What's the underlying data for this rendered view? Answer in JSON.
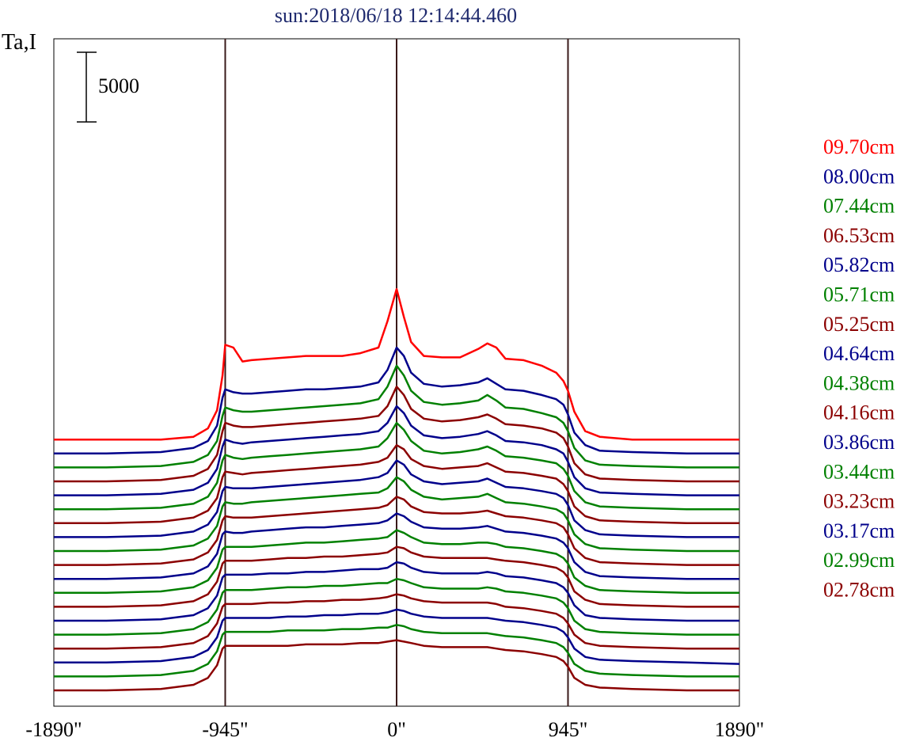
{
  "chart_data": {
    "type": "line",
    "title": "sun:2018/06/18 12:14:44.460",
    "ylabel": "Ta,I",
    "xlim": [
      -1890,
      1890
    ],
    "x_ticks": [
      -1890,
      -945,
      0,
      945,
      1890
    ],
    "x_tick_labels": [
      "-1890\"",
      "-945\"",
      "0\"",
      "945\"",
      "1890\""
    ],
    "vertical_lines": [
      -945,
      0,
      945
    ],
    "scale_bar": {
      "value": 5000,
      "label": "5000"
    },
    "grid": false,
    "legend_position": "right",
    "x": [
      -1890,
      -1600,
      -1300,
      -1120,
      -1040,
      -990,
      -960,
      -945,
      -900,
      -850,
      -800,
      -700,
      -600,
      -500,
      -400,
      -300,
      -200,
      -100,
      -50,
      0,
      40,
      80,
      150,
      250,
      350,
      450,
      500,
      550,
      600,
      700,
      800,
      880,
      920,
      945,
      980,
      1040,
      1120,
      1300,
      1600,
      1890
    ],
    "series": [
      {
        "name": "09.70cm",
        "color": "#ff0000",
        "values": [
          0,
          0,
          0,
          200,
          800,
          2100,
          4600,
          6800,
          6600,
          5600,
          5700,
          5800,
          5900,
          6000,
          6000,
          6000,
          6200,
          6600,
          8500,
          10800,
          8800,
          7000,
          6000,
          5900,
          5900,
          6500,
          6900,
          6600,
          5800,
          5700,
          5300,
          4800,
          4200,
          3500,
          2000,
          600,
          200,
          0,
          0,
          0
        ]
      },
      {
        "name": "08.00cm",
        "color": "#00008b",
        "values": [
          0,
          0,
          100,
          400,
          900,
          2000,
          4000,
          4600,
          4400,
          4300,
          4300,
          4400,
          4500,
          4600,
          4600,
          4700,
          4800,
          5100,
          6000,
          7600,
          7000,
          5800,
          5000,
          4800,
          4900,
          5100,
          5400,
          5000,
          4600,
          4500,
          4200,
          3900,
          3500,
          2800,
          1500,
          600,
          200,
          100,
          0,
          0
        ]
      },
      {
        "name": "07.44cm",
        "color": "#008000",
        "values": [
          0,
          0,
          100,
          400,
          900,
          1900,
          3700,
          4300,
          4100,
          4000,
          4000,
          4100,
          4200,
          4300,
          4400,
          4500,
          4600,
          4900,
          5800,
          7300,
          6600,
          5500,
          4700,
          4500,
          4600,
          4800,
          5200,
          4800,
          4300,
          4200,
          3900,
          3600,
          3200,
          2600,
          1400,
          500,
          200,
          100,
          0,
          0
        ]
      },
      {
        "name": "06.53cm",
        "color": "#8b0000",
        "values": [
          0,
          0,
          100,
          400,
          900,
          1900,
          3600,
          4200,
          4000,
          3900,
          3900,
          4000,
          4100,
          4200,
          4300,
          4400,
          4500,
          4700,
          5400,
          6800,
          6200,
          5200,
          4500,
          4300,
          4400,
          4600,
          4800,
          4500,
          4100,
          4000,
          3800,
          3500,
          3100,
          2500,
          1300,
          500,
          200,
          100,
          0,
          0
        ]
      },
      {
        "name": "05.82cm",
        "color": "#00008b",
        "values": [
          0,
          0,
          100,
          400,
          900,
          1900,
          3500,
          4000,
          3800,
          3700,
          3800,
          3900,
          4000,
          4100,
          4200,
          4300,
          4400,
          4600,
          5200,
          6400,
          5900,
          5000,
          4300,
          4100,
          4200,
          4400,
          4600,
          4300,
          3900,
          3800,
          3600,
          3300,
          3000,
          2400,
          1300,
          500,
          200,
          100,
          0,
          0
        ]
      },
      {
        "name": "05.71cm",
        "color": "#008000",
        "values": [
          0,
          0,
          100,
          400,
          900,
          1900,
          3500,
          3900,
          3700,
          3600,
          3700,
          3800,
          3900,
          4000,
          4100,
          4200,
          4300,
          4500,
          5100,
          6200,
          5700,
          4900,
          4200,
          4000,
          4100,
          4300,
          4500,
          4200,
          3800,
          3700,
          3500,
          3300,
          2900,
          2400,
          1300,
          500,
          200,
          100,
          0,
          0
        ]
      },
      {
        "name": "05.25cm",
        "color": "#8b0000",
        "values": [
          0,
          0,
          100,
          400,
          900,
          1800,
          3300,
          3700,
          3600,
          3500,
          3600,
          3700,
          3800,
          3900,
          4000,
          4100,
          4200,
          4400,
          4700,
          5600,
          5300,
          4600,
          4100,
          3900,
          4000,
          4100,
          4300,
          4000,
          3700,
          3600,
          3400,
          3200,
          2800,
          2300,
          1200,
          500,
          200,
          100,
          0,
          0
        ]
      },
      {
        "name": "04.64cm",
        "color": "#00008b",
        "values": [
          0,
          0,
          100,
          400,
          900,
          1800,
          3300,
          3600,
          3500,
          3500,
          3500,
          3600,
          3700,
          3800,
          3900,
          4000,
          4100,
          4300,
          4600,
          5500,
          5200,
          4500,
          4000,
          3800,
          3900,
          4000,
          4200,
          3900,
          3600,
          3500,
          3300,
          3100,
          2800,
          2300,
          1200,
          500,
          200,
          100,
          0,
          0
        ]
      },
      {
        "name": "04.38cm",
        "color": "#008000",
        "values": [
          0,
          0,
          100,
          400,
          900,
          1800,
          3200,
          3500,
          3400,
          3400,
          3500,
          3600,
          3700,
          3800,
          3900,
          4000,
          4100,
          4200,
          4500,
          5300,
          5000,
          4400,
          3900,
          3700,
          3800,
          3900,
          4100,
          3800,
          3500,
          3400,
          3200,
          3000,
          2700,
          2200,
          1200,
          500,
          200,
          100,
          0,
          0
        ]
      },
      {
        "name": "04.16cm",
        "color": "#8b0000",
        "values": [
          0,
          0,
          100,
          400,
          900,
          1800,
          3200,
          3500,
          3400,
          3400,
          3400,
          3500,
          3600,
          3700,
          3800,
          3900,
          4000,
          4100,
          4300,
          4900,
          4700,
          4200,
          3800,
          3700,
          3700,
          3800,
          3900,
          3700,
          3500,
          3400,
          3200,
          3000,
          2700,
          2200,
          1200,
          500,
          200,
          100,
          0,
          0
        ]
      },
      {
        "name": "03.86cm",
        "color": "#00008b",
        "values": [
          0,
          0,
          100,
          400,
          900,
          1800,
          3200,
          3400,
          3300,
          3300,
          3400,
          3500,
          3600,
          3700,
          3700,
          3800,
          3900,
          4000,
          4200,
          4700,
          4500,
          4100,
          3700,
          3600,
          3600,
          3700,
          3800,
          3600,
          3400,
          3300,
          3100,
          2900,
          2600,
          2200,
          1200,
          500,
          200,
          100,
          0,
          0
        ]
      },
      {
        "name": "03.44cm",
        "color": "#008000",
        "values": [
          0,
          0,
          100,
          400,
          900,
          1800,
          3100,
          3300,
          3300,
          3300,
          3300,
          3400,
          3500,
          3600,
          3600,
          3700,
          3800,
          3900,
          4000,
          4500,
          4300,
          4000,
          3600,
          3500,
          3500,
          3600,
          3600,
          3500,
          3300,
          3200,
          3000,
          2800,
          2500,
          2100,
          1100,
          500,
          200,
          100,
          0,
          0
        ]
      },
      {
        "name": "03.23cm",
        "color": "#8b0000",
        "values": [
          0,
          0,
          100,
          400,
          900,
          1800,
          3100,
          3300,
          3300,
          3300,
          3300,
          3400,
          3500,
          3500,
          3600,
          3600,
          3700,
          3800,
          3900,
          4300,
          4200,
          3900,
          3600,
          3500,
          3500,
          3500,
          3500,
          3400,
          3300,
          3200,
          3000,
          2800,
          2500,
          2100,
          1100,
          500,
          200,
          100,
          0,
          0
        ]
      },
      {
        "name": "03.17cm",
        "color": "#00008b",
        "values": [
          0,
          0,
          100,
          400,
          900,
          1800,
          3100,
          3300,
          3300,
          3300,
          3300,
          3400,
          3400,
          3500,
          3500,
          3600,
          3700,
          3700,
          3800,
          4200,
          4100,
          3800,
          3500,
          3400,
          3400,
          3400,
          3500,
          3400,
          3200,
          3100,
          2900,
          2700,
          2400,
          2000,
          1100,
          400,
          200,
          100,
          0,
          0
        ]
      },
      {
        "name": "02.99cm",
        "color": "#008000",
        "values": [
          0,
          0,
          100,
          400,
          900,
          1800,
          3000,
          3200,
          3200,
          3200,
          3200,
          3300,
          3400,
          3400,
          3500,
          3500,
          3600,
          3700,
          3700,
          4000,
          3900,
          3700,
          3400,
          3300,
          3300,
          3300,
          3400,
          3300,
          3100,
          3000,
          2800,
          2600,
          2300,
          1900,
          1000,
          400,
          200,
          100,
          0,
          0
        ]
      },
      {
        "name": "02.78cm",
        "color": "#8b0000",
        "values": [
          0,
          0,
          100,
          400,
          900,
          1800,
          3000,
          3200,
          3200,
          3200,
          3200,
          3300,
          3300,
          3400,
          3400,
          3500,
          3500,
          3600,
          3700,
          3900,
          3800,
          3600,
          3400,
          3300,
          3300,
          3300,
          3300,
          3200,
          3000,
          2900,
          2700,
          2500,
          2200,
          1800,
          1000,
          400,
          200,
          100,
          0,
          0
        ]
      },
      {
        "color": "#00008b",
        "values": [
          0,
          0,
          100,
          400,
          900,
          1800,
          3000,
          3200,
          3200,
          3200,
          3200,
          3200,
          3300,
          3300,
          3400,
          3400,
          3500,
          3500,
          3600,
          3800,
          3700,
          3500,
          3300,
          3200,
          3200,
          3200,
          3200,
          3100,
          3000,
          2900,
          2700,
          2500,
          2200,
          1800,
          1000,
          400,
          200,
          100,
          0,
          -100
        ]
      },
      {
        "color": "#008000",
        "values": [
          0,
          0,
          100,
          400,
          900,
          1800,
          3000,
          3200,
          3200,
          3200,
          3200,
          3200,
          3300,
          3300,
          3300,
          3400,
          3400,
          3500,
          3500,
          3700,
          3600,
          3400,
          3200,
          3100,
          3100,
          3100,
          3100,
          3000,
          2900,
          2800,
          2600,
          2400,
          2100,
          1700,
          900,
          400,
          200,
          100,
          0,
          0
        ]
      },
      {
        "color": "#8b0000",
        "values": [
          0,
          0,
          100,
          400,
          900,
          1800,
          3000,
          3200,
          3200,
          3200,
          3200,
          3200,
          3200,
          3300,
          3300,
          3300,
          3400,
          3400,
          3500,
          3600,
          3500,
          3400,
          3200,
          3100,
          3100,
          3100,
          3100,
          3000,
          2900,
          2800,
          2600,
          2400,
          2100,
          1700,
          900,
          400,
          200,
          100,
          0,
          0
        ]
      }
    ],
    "baseline_offset_step": 1000
  }
}
